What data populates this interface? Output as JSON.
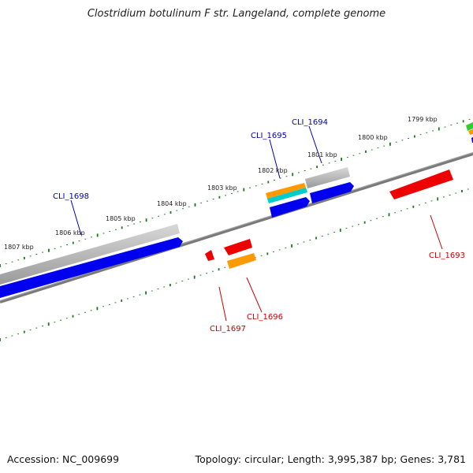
{
  "title": "Clostridium botulinum F str. Langeland, complete genome",
  "footer": {
    "accession": "Accession: NC_009699",
    "topology": "Topology: circular; Length: 3,995,387 bp; Genes: 3,781"
  },
  "scale_labels": [
    "1807 kbp",
    "1806 kbp",
    "1805 kbp",
    "1804 kbp",
    "1803 kbp",
    "1802 kbp",
    "1801 kbp",
    "1800 kbp",
    "1799 kbp"
  ],
  "genes": [
    {
      "name": "CLI_1698",
      "color": "#0000bb"
    },
    {
      "name": "CLI_1695",
      "color": "#0000bb"
    },
    {
      "name": "CLI_1694",
      "color": "#0000bb"
    },
    {
      "name": "CLI_1697",
      "color": "#cc0000"
    },
    {
      "name": "CLI_1696",
      "color": "#cc0000"
    },
    {
      "name": "CLI_1693",
      "color": "#cc0000"
    }
  ],
  "colors": {
    "forward_cds": "#0000ee",
    "reverse_cds": "#ee0000",
    "gray_feature": "#b8b8b8",
    "orange_feature": "#ff9900",
    "cyan_feature": "#00cccc",
    "green_feature": "#33cc33",
    "backbone": "#7a7a7a",
    "ticks": "#1a7a1a"
  }
}
